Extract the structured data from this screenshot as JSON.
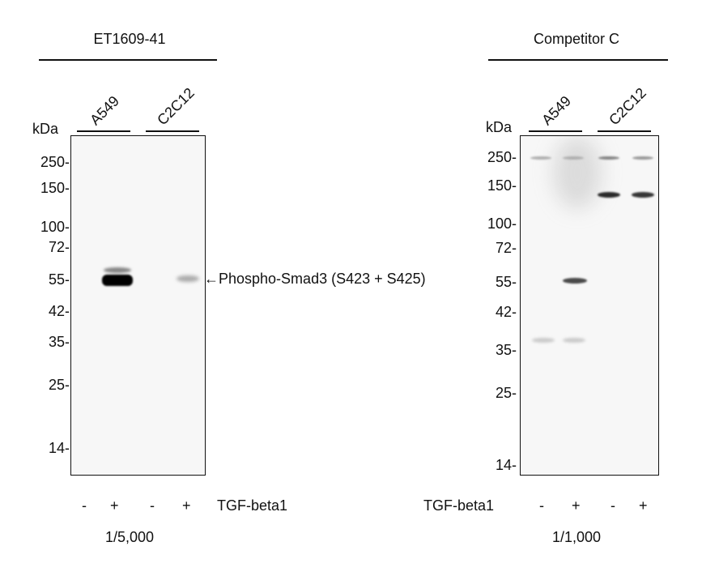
{
  "left_panel": {
    "antibody": "ET1609-41",
    "unit": "kDa",
    "lanes": [
      "A549",
      "C2C12"
    ],
    "markers": [
      "250-",
      "150-",
      "100-",
      "72-",
      "55-",
      "42-",
      "35-",
      "25-",
      "14-"
    ],
    "target_label": "←Phospho-Smad3 (S423 + S425)",
    "treatment_signs": [
      "-",
      "+",
      "-",
      "+"
    ],
    "treatment": "TGF-beta1",
    "dilution": "1/5,000"
  },
  "right_panel": {
    "antibody": "Competitor C",
    "unit": "kDa",
    "lanes": [
      "A549",
      "C2C12"
    ],
    "markers": [
      "250-",
      "150-",
      "100-",
      "72-",
      "55-",
      "42-",
      "35-",
      "25-",
      "14-"
    ],
    "treatment_signs": [
      "-",
      "+",
      "-",
      "+"
    ],
    "treatment": "TGF-beta1",
    "dilution": "1/1,000"
  }
}
